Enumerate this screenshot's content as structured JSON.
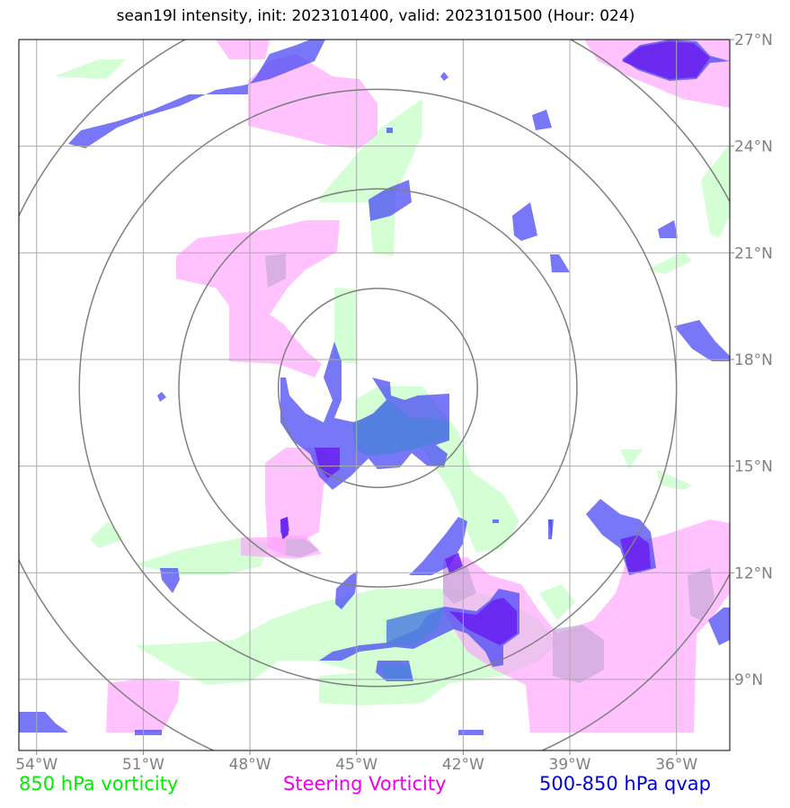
{
  "title": "sean19l intensity, init: 2023101400, valid: 2023101500 (Hour: 024)",
  "map": {
    "lon_range": [
      -54.5,
      -34.5
    ],
    "lat_range": [
      7.0,
      27.0
    ],
    "lon_ticks": [
      {
        "value": -54,
        "label": "54°W"
      },
      {
        "value": -51,
        "label": "51°W"
      },
      {
        "value": -48,
        "label": "48°W"
      },
      {
        "value": -45,
        "label": "45°W"
      },
      {
        "value": -42,
        "label": "42°W"
      },
      {
        "value": -39,
        "label": "39°W"
      },
      {
        "value": -36,
        "label": "36°W"
      }
    ],
    "lat_ticks": [
      {
        "value": 9,
        "label": "9°N"
      },
      {
        "value": 12,
        "label": "12°N"
      },
      {
        "value": 15,
        "label": "15°N"
      },
      {
        "value": 18,
        "label": "18°N"
      },
      {
        "value": 21,
        "label": "21°N"
      },
      {
        "value": 24,
        "label": "24°N"
      },
      {
        "value": 27,
        "label": "27°N"
      }
    ],
    "center": {
      "lon": -44.4,
      "lat": 17.2
    },
    "range_rings_deg": [
      2.8,
      5.6,
      8.4,
      11.2
    ],
    "colors": {
      "vort850": "#ccffcc",
      "steering": "#ff99ff",
      "qvap": "#4a4af5",
      "ring": "#808080",
      "grid": "#aaaaaa"
    }
  },
  "legend": {
    "vort850": {
      "label": "850 hPa vorticity",
      "color": "#00ee00"
    },
    "steering": {
      "label": "Steering Vorticity",
      "color": "#ee00ee"
    },
    "qvap": {
      "label": "500-850 hPa qvap",
      "color": "#0000dd"
    }
  }
}
